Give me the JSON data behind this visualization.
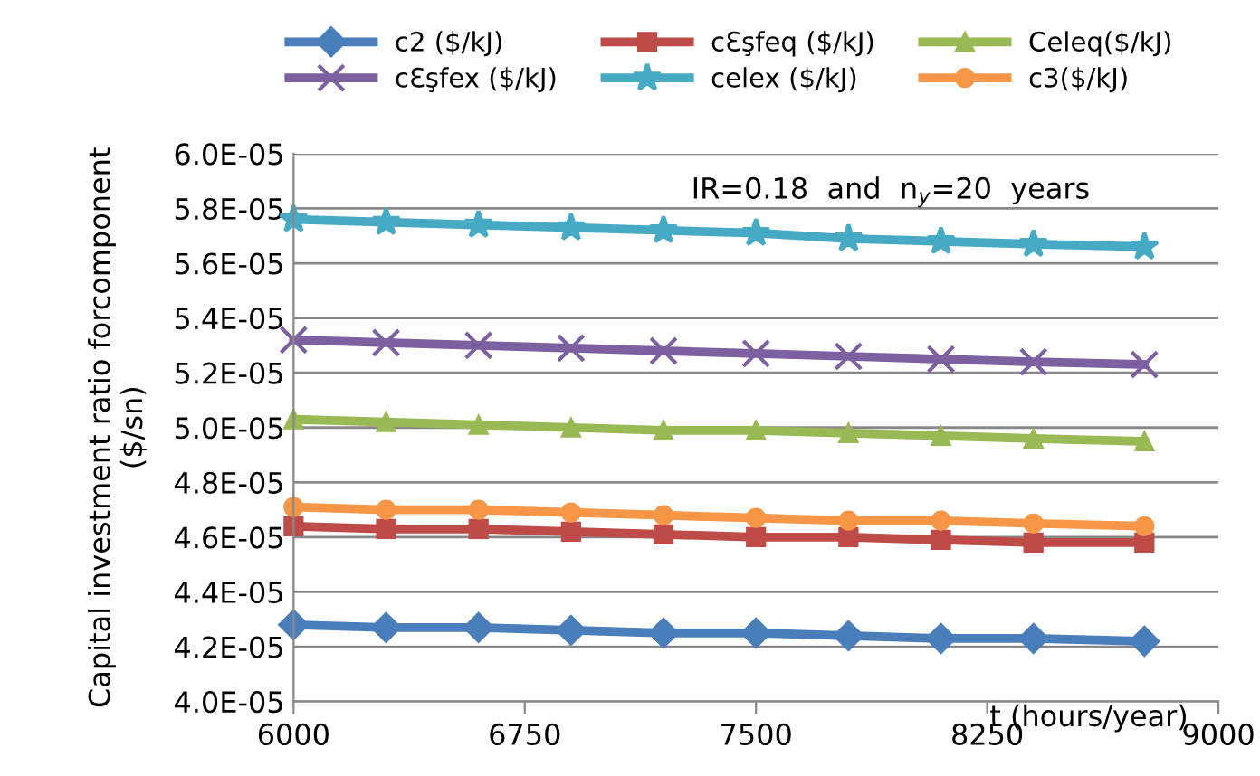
{
  "chart_data": {
    "type": "line",
    "x": [
      6000,
      6300,
      6600,
      6900,
      7200,
      7500,
      7800,
      8100,
      8400,
      8760
    ],
    "series": [
      {
        "name": "c2 ($/kJ)",
        "color": "#4a7ebb",
        "marker": "diamond",
        "values": [
          4.28e-05,
          4.27e-05,
          4.27e-05,
          4.26e-05,
          4.25e-05,
          4.25e-05,
          4.24e-05,
          4.23e-05,
          4.23e-05,
          4.22e-05
        ]
      },
      {
        "name": "cƐşfeq ($/kJ)",
        "color": "#be4b48",
        "marker": "square",
        "values": [
          4.64e-05,
          4.63e-05,
          4.63e-05,
          4.62e-05,
          4.61e-05,
          4.6e-05,
          4.6e-05,
          4.59e-05,
          4.58e-05,
          4.58e-05
        ]
      },
      {
        "name": "Celeq($/kJ)",
        "color": "#98b954",
        "marker": "triangle",
        "values": [
          5.03e-05,
          5.02e-05,
          5.01e-05,
          5e-05,
          4.99e-05,
          4.99e-05,
          4.98e-05,
          4.97e-05,
          4.96e-05,
          4.95e-05
        ]
      },
      {
        "name": "cƐşfex ($/kJ)",
        "color": "#7d60a0",
        "marker": "cross",
        "values": [
          5.32e-05,
          5.31e-05,
          5.3e-05,
          5.29e-05,
          5.28e-05,
          5.27e-05,
          5.26e-05,
          5.25e-05,
          5.24e-05,
          5.23e-05
        ]
      },
      {
        "name": "celex ($/kJ)",
        "color": "#46aac5",
        "marker": "star",
        "values": [
          5.76e-05,
          5.75e-05,
          5.74e-05,
          5.73e-05,
          5.72e-05,
          5.71e-05,
          5.69e-05,
          5.68e-05,
          5.67e-05,
          5.66e-05
        ]
      },
      {
        "name": "c3($/kJ)",
        "color": "#f79646",
        "marker": "circle",
        "values": [
          4.71e-05,
          4.7e-05,
          4.7e-05,
          4.69e-05,
          4.68e-05,
          4.67e-05,
          4.66e-05,
          4.66e-05,
          4.65e-05,
          4.64e-05
        ]
      }
    ],
    "xlabel": "t (hours/year)",
    "ylabel": "Capital investment ratio forcomponent\n($/sn)",
    "annotations": [
      "IR=0.18  and  n$_{y}$=20  years"
    ],
    "xlim": [
      6000,
      9000
    ],
    "xticks": [
      6000,
      6750,
      7500,
      8250,
      9000
    ],
    "ylim": [
      4e-05,
      6e-05
    ],
    "yticks": [
      {
        "value": 4e-05,
        "label": "4.0E-05"
      },
      {
        "value": 4.2e-05,
        "label": "4.2E-05"
      },
      {
        "value": 4.4e-05,
        "label": "4.4E-05"
      },
      {
        "value": 4.6e-05,
        "label": "4.6E-05"
      },
      {
        "value": 4.8e-05,
        "label": "4.8E-05"
      },
      {
        "value": 5e-05,
        "label": "5.0E-05"
      },
      {
        "value": 5.2e-05,
        "label": "5.2E-05"
      },
      {
        "value": 5.4e-05,
        "label": "5.4E-05"
      },
      {
        "value": 5.6e-05,
        "label": "5.6E-05"
      },
      {
        "value": 5.8e-05,
        "label": "5.8E-05"
      },
      {
        "value": 6e-05,
        "label": "6.0E-05"
      }
    ],
    "grid": "y",
    "legend": "top",
    "line_style": "solid"
  }
}
